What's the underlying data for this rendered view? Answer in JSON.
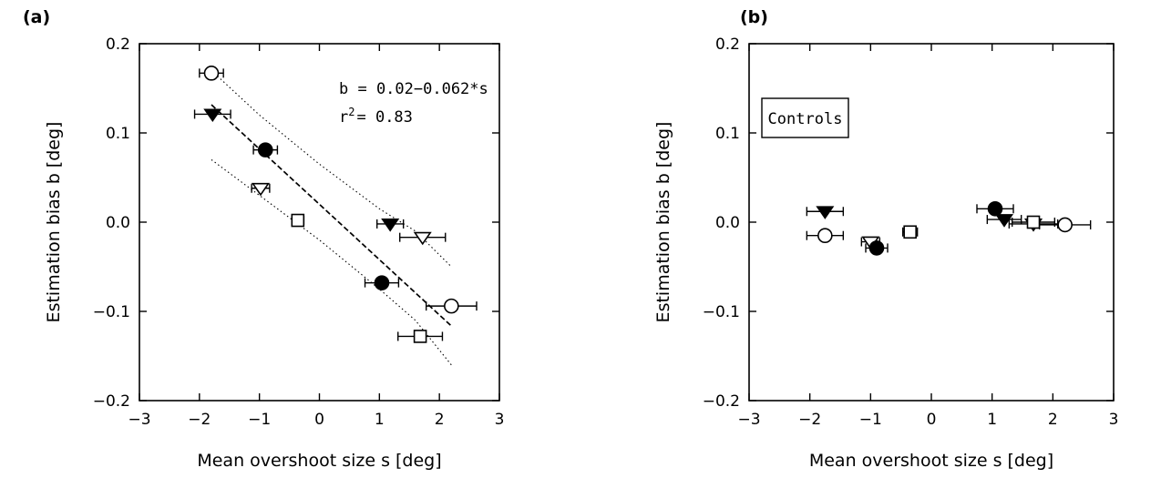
{
  "chart_data": [
    {
      "type": "scatter",
      "panel_label": "(a)",
      "title": "",
      "xlabel": "Mean overshoot size s [deg]",
      "ylabel": "Estimation bias b [deg]",
      "xlim": [
        -3,
        3
      ],
      "ylim": [
        -0.2,
        0.2
      ],
      "x_ticks": [
        -3,
        -2,
        -1,
        0,
        1,
        2,
        3
      ],
      "x_tick_labels": [
        "−3",
        "−2",
        "−1",
        "0",
        "1",
        "2",
        "3"
      ],
      "y_ticks": [
        -0.2,
        -0.1,
        0.0,
        0.1,
        0.2
      ],
      "y_tick_labels": [
        "−0.2",
        "−0.1",
        "0.0",
        "0.1",
        "0.2"
      ],
      "grid": false,
      "annotation": {
        "equation": "b = 0.02−0.062*s",
        "r2_prefix": "r",
        "r2_sup": "2",
        "r2_value": "= 0.83"
      },
      "fit_line": {
        "intercept": 0.02,
        "slope": -0.062,
        "x_range": [
          -1.8,
          2.2
        ],
        "style": "dashed"
      },
      "confidence_band": {
        "upper": [
          [
            -1.8,
            0.17
          ],
          [
            -1.0,
            0.12
          ],
          [
            0.0,
            0.065
          ],
          [
            1.0,
            0.015
          ],
          [
            1.6,
            -0.01
          ],
          [
            2.2,
            -0.05
          ]
        ],
        "lower": [
          [
            -1.8,
            0.07
          ],
          [
            -1.0,
            0.03
          ],
          [
            0.0,
            -0.02
          ],
          [
            1.0,
            -0.075
          ],
          [
            1.6,
            -0.11
          ],
          [
            2.2,
            -0.16
          ]
        ],
        "style": "dotted"
      },
      "series": [
        {
          "marker": "circle-open",
          "points": [
            {
              "x": -1.8,
              "y": 0.167,
              "xerr": 0.2
            },
            {
              "x": 2.2,
              "y": -0.094,
              "xerr": 0.42
            }
          ]
        },
        {
          "marker": "triangle-down-filled",
          "points": [
            {
              "x": -1.78,
              "y": 0.121,
              "xerr": 0.3
            },
            {
              "x": 1.18,
              "y": -0.002,
              "xerr": 0.22
            }
          ]
        },
        {
          "marker": "circle-filled",
          "points": [
            {
              "x": -0.9,
              "y": 0.081,
              "xerr": 0.2
            },
            {
              "x": 1.04,
              "y": -0.068,
              "xerr": 0.28
            }
          ]
        },
        {
          "marker": "triangle-down-open",
          "points": [
            {
              "x": -0.98,
              "y": 0.038,
              "xerr": 0.15
            },
            {
              "x": 1.72,
              "y": -0.017,
              "xerr": 0.38
            }
          ]
        },
        {
          "marker": "square-open",
          "points": [
            {
              "x": -0.36,
              "y": 0.002,
              "xerr": 0.1
            },
            {
              "x": 1.68,
              "y": -0.128,
              "xerr": 0.37
            }
          ]
        }
      ]
    },
    {
      "type": "scatter",
      "panel_label": "(b)",
      "title": "",
      "xlabel": "Mean overshoot size s [deg]",
      "ylabel": "Estimation bias b [deg]",
      "xlim": [
        -3,
        3
      ],
      "ylim": [
        -0.2,
        0.2
      ],
      "x_ticks": [
        -3,
        -2,
        -1,
        0,
        1,
        2,
        3
      ],
      "x_tick_labels": [
        "−3",
        "−2",
        "−1",
        "0",
        "1",
        "2",
        "3"
      ],
      "y_ticks": [
        -0.2,
        -0.1,
        0.0,
        0.1,
        0.2
      ],
      "y_tick_labels": [
        "−0.2",
        "−0.1",
        "0.0",
        "0.1",
        "0.2"
      ],
      "grid": false,
      "annotation_box": "Controls",
      "series": [
        {
          "marker": "triangle-down-filled",
          "points": [
            {
              "x": -1.75,
              "y": 0.012,
              "xerr": 0.3
            },
            {
              "x": 1.2,
              "y": 0.003,
              "xerr": 0.28
            }
          ]
        },
        {
          "marker": "circle-open",
          "points": [
            {
              "x": -1.75,
              "y": -0.015,
              "xerr": 0.3
            },
            {
              "x": 2.2,
              "y": -0.003,
              "xerr": 0.42
            }
          ]
        },
        {
          "marker": "triangle-down-open",
          "points": [
            {
              "x": -1.0,
              "y": -0.022,
              "xerr": 0.15
            },
            {
              "x": 1.68,
              "y": -0.002,
              "xerr": 0.4
            }
          ]
        },
        {
          "marker": "circle-filled",
          "points": [
            {
              "x": -0.9,
              "y": -0.029,
              "xerr": 0.18
            },
            {
              "x": 1.05,
              "y": 0.015,
              "xerr": 0.3
            }
          ]
        },
        {
          "marker": "square-open",
          "points": [
            {
              "x": -0.35,
              "y": -0.011,
              "xerr": 0.12
            },
            {
              "x": 1.68,
              "y": 0.0,
              "xerr": 0.35
            }
          ]
        }
      ]
    }
  ]
}
